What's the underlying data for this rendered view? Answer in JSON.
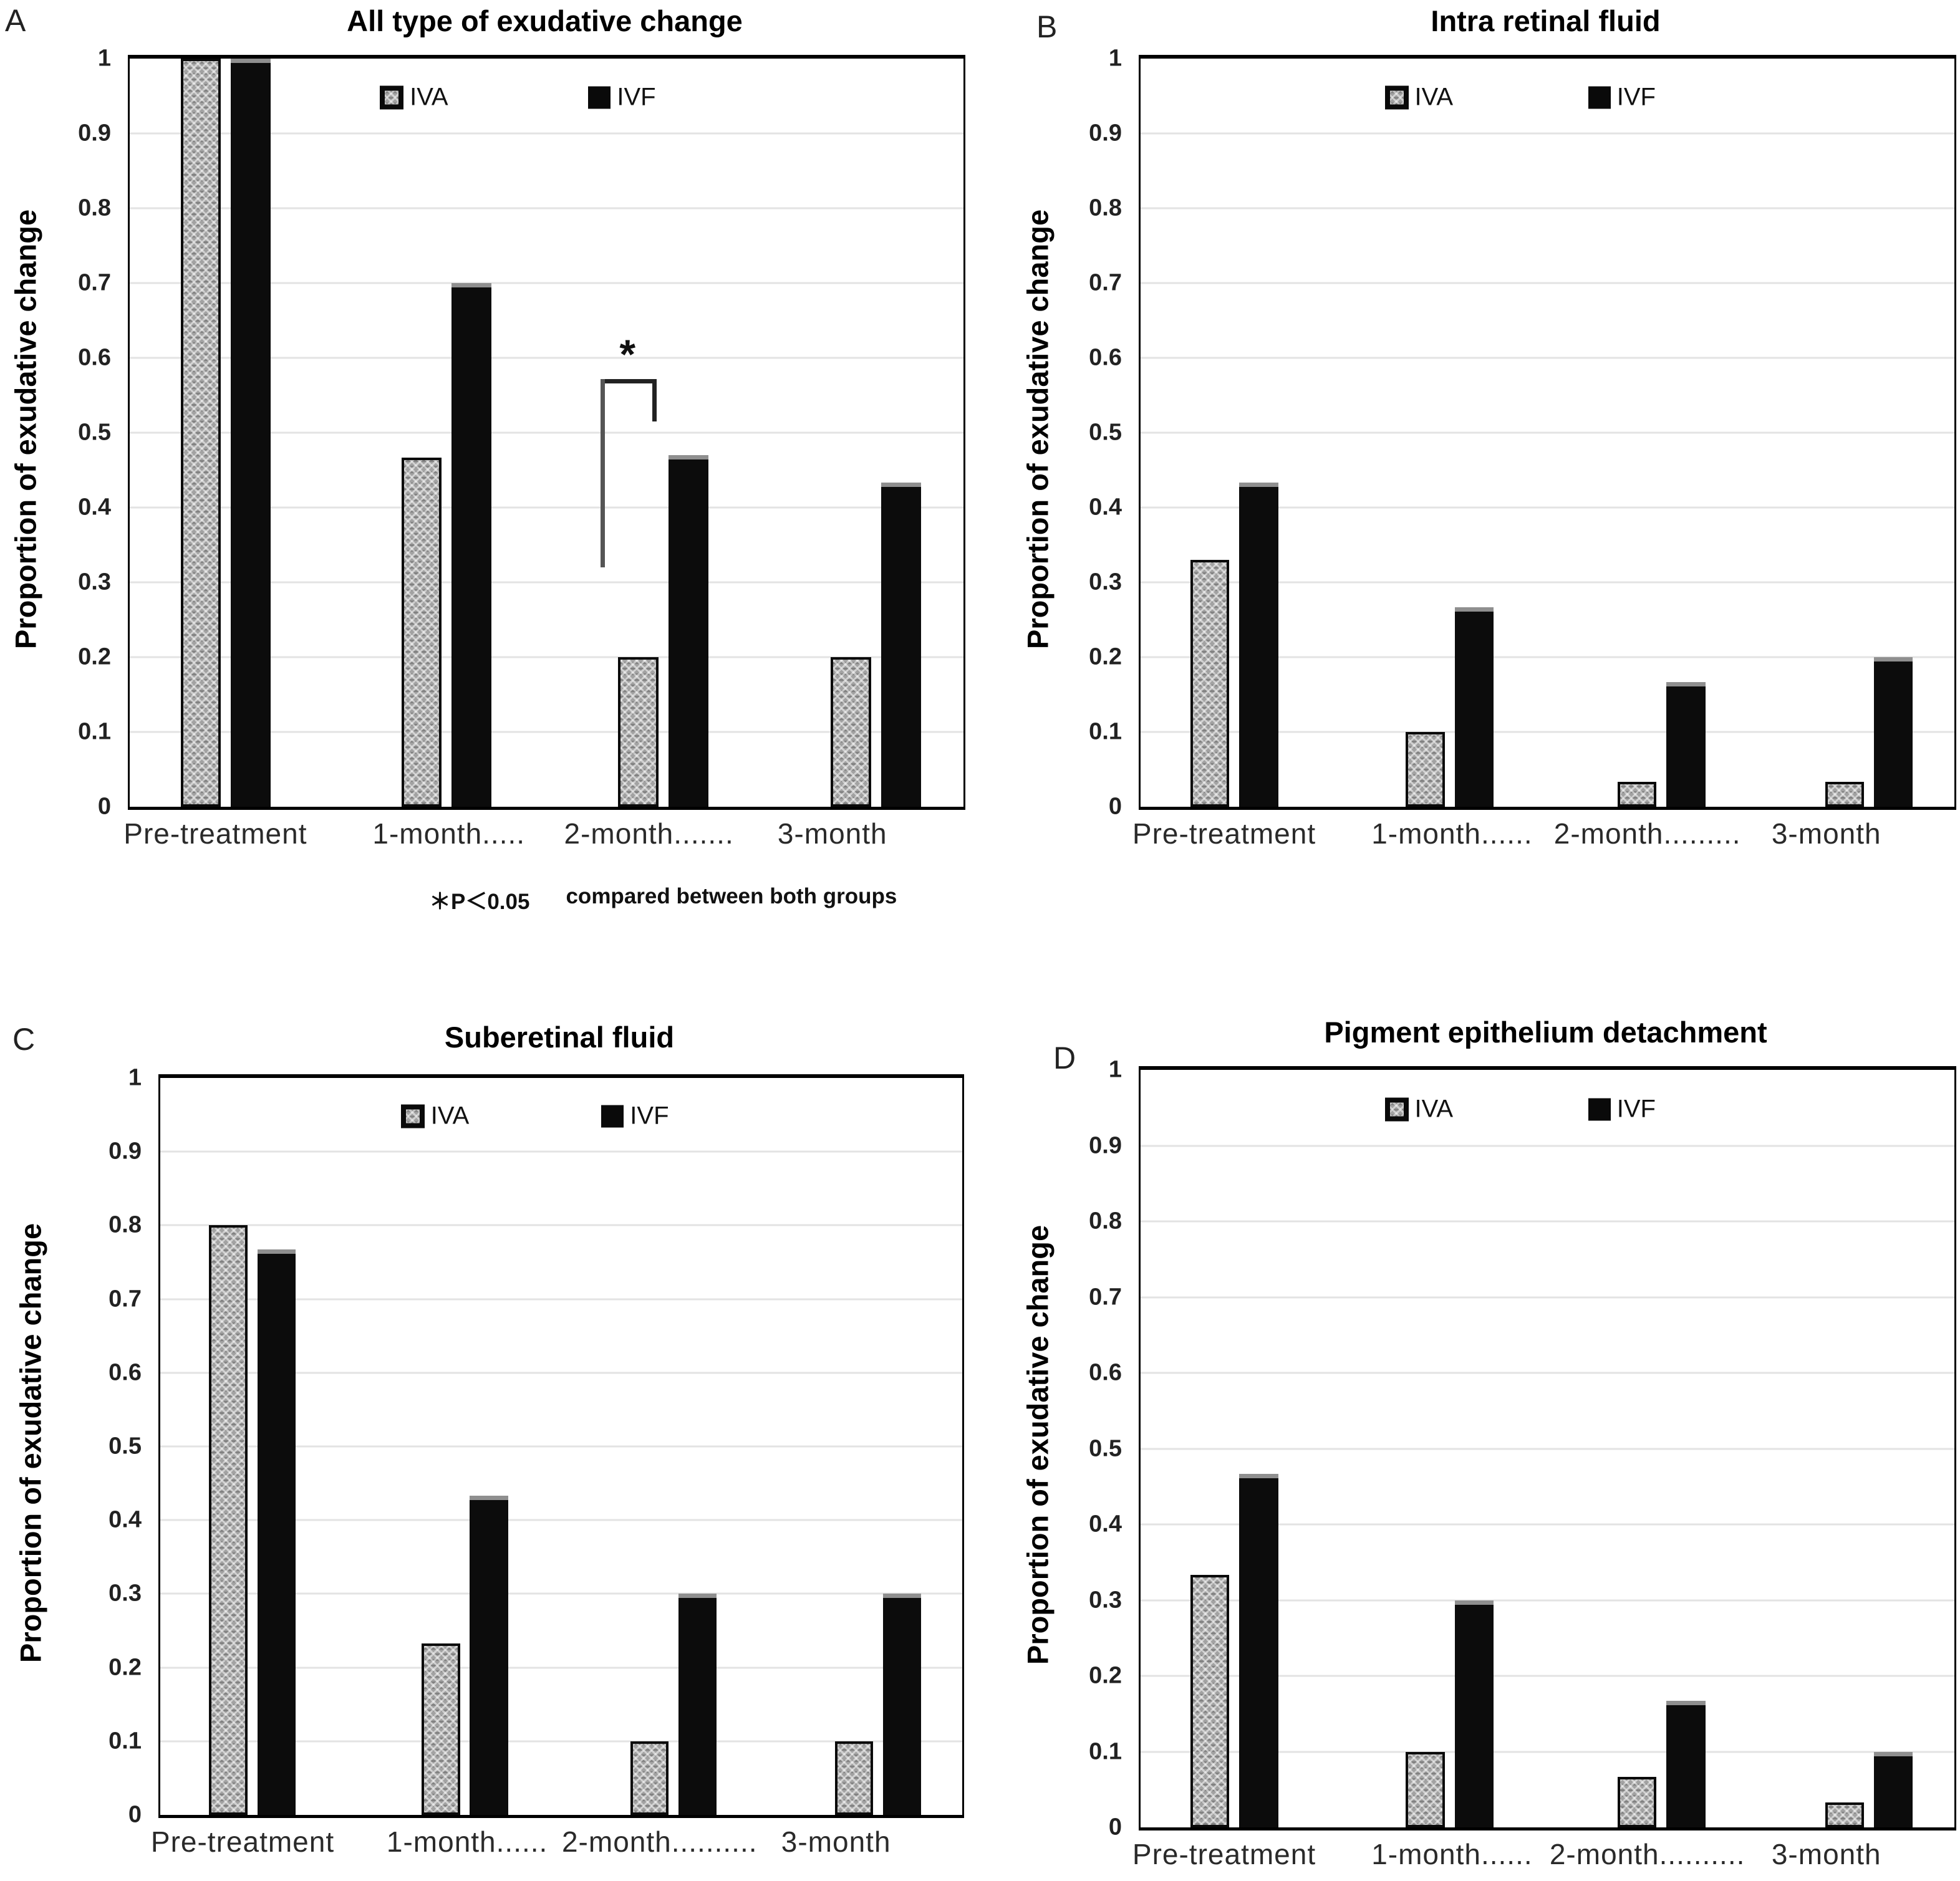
{
  "figure": {
    "yticks": [
      "1",
      "0.9",
      "0.8",
      "0.7",
      "0.6",
      "0.5",
      "0.4",
      "0.3",
      "0.2",
      "0.1",
      "0"
    ],
    "footnote": {
      "significance": "＊P＜0.05",
      "text": "compared between both groups"
    },
    "colors": {
      "iva_fill": "#a2a2a2",
      "ivf_fill": "#0c0c0c",
      "gridline": "#e3e3e3",
      "text": "#111111"
    }
  },
  "chart_data": [
    {
      "type": "bar",
      "letter": "A",
      "title": "All type of exudative change",
      "ylabel": "Proportion of exudative change",
      "ylim": [
        0,
        1
      ],
      "ytick_step": 0.1,
      "grid": true,
      "legend_position": "top-inside",
      "categories": [
        "Pre-treatment",
        "1-month",
        "2-month",
        "3-month"
      ],
      "xtick_labels": [
        "Pre-treatment",
        "1-month.....",
        "2-month.......",
        "3-month"
      ],
      "series": [
        {
          "name": "IVA",
          "values": [
            1.0,
            0.467,
            0.2,
            0.2
          ]
        },
        {
          "name": "IVF",
          "values": [
            1.0,
            0.7,
            0.47,
            0.433
          ]
        }
      ],
      "annotation": {
        "symbol": "*",
        "compared_group": "2-month",
        "bracket": {
          "x1_frac": 0.565,
          "x2_frac": 0.632,
          "y_top": 0.572,
          "y1_bottom": 0.32,
          "y2_bottom": 0.515,
          "asterisk_x_frac": 0.597,
          "asterisk_y": 0.6
        }
      }
    },
    {
      "type": "bar",
      "letter": "B",
      "title": "Intra retinal fluid",
      "ylabel": "Proportion of exudative change",
      "ylim": [
        0,
        1
      ],
      "ytick_step": 0.1,
      "grid": true,
      "legend_position": "top-inside",
      "categories": [
        "Pre-treatment",
        "1-month",
        "2-month",
        "3-month"
      ],
      "xtick_labels": [
        "Pre-treatment",
        "1-month......",
        "2-month.........",
        "3-month"
      ],
      "series": [
        {
          "name": "IVA",
          "values": [
            0.33,
            0.1,
            0.033,
            0.033
          ]
        },
        {
          "name": "IVF",
          "values": [
            0.433,
            0.267,
            0.167,
            0.2
          ]
        }
      ]
    },
    {
      "type": "bar",
      "letter": "C",
      "title": "Suberetinal fluid",
      "ylabel": "Proportion of exudative change",
      "ylim": [
        0,
        1
      ],
      "ytick_step": 0.1,
      "grid": true,
      "legend_position": "top-inside",
      "categories": [
        "Pre-treatment",
        "1-month",
        "2-month",
        "3-month"
      ],
      "xtick_labels": [
        "Pre-treatment",
        "1-month......",
        "2-month..........",
        "3-month"
      ],
      "series": [
        {
          "name": "IVA",
          "values": [
            0.8,
            0.233,
            0.1,
            0.1
          ]
        },
        {
          "name": "IVF",
          "values": [
            0.767,
            0.433,
            0.3,
            0.3
          ]
        }
      ]
    },
    {
      "type": "bar",
      "letter": "D",
      "title": "Pigment epithelium detachment",
      "ylabel": "Proportion of exudative change",
      "ylim": [
        0,
        1
      ],
      "ytick_step": 0.1,
      "grid": true,
      "legend_position": "top-inside",
      "categories": [
        "Pre-treatment",
        "1-month",
        "2-month",
        "3-month"
      ],
      "xtick_labels": [
        "Pre-treatment",
        "1-month......",
        "2-month..........",
        "3-month"
      ],
      "series": [
        {
          "name": "IVA",
          "values": [
            0.333,
            0.1,
            0.067,
            0.033
          ]
        },
        {
          "name": "IVF",
          "values": [
            0.467,
            0.3,
            0.167,
            0.1
          ]
        }
      ]
    }
  ]
}
